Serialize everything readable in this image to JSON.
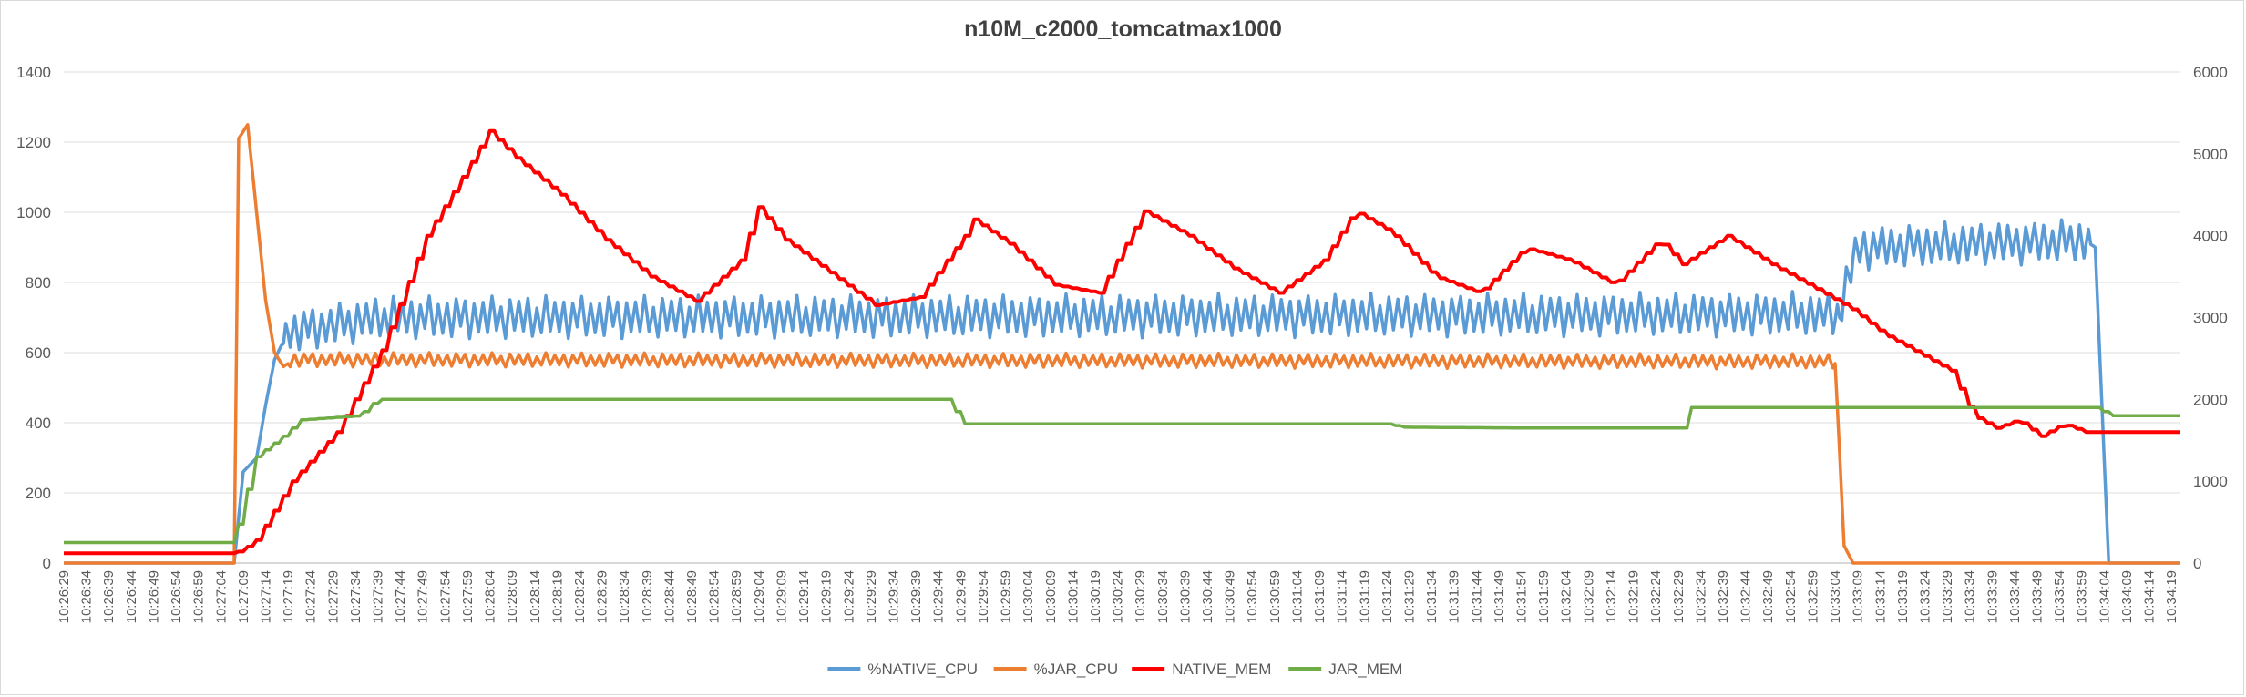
{
  "chart_data": {
    "type": "line",
    "title": "n10M_c2000_tomcatmax1000",
    "x_start": "10:26:29",
    "x_end": "10:34:21",
    "x_label_step_seconds": 5,
    "y_left": {
      "range": [
        0,
        1400
      ],
      "ticks": [
        0,
        200,
        400,
        600,
        800,
        1000,
        1200,
        1400
      ]
    },
    "y_right": {
      "range": [
        0,
        6000
      ],
      "ticks": [
        0,
        1000,
        2000,
        3000,
        4000,
        5000,
        6000
      ]
    },
    "grid": true,
    "legend_position": "bottom",
    "series": [
      {
        "name": "%NATIVE_CPU",
        "color": "#5b9bd5",
        "axis": "left",
        "style": "oscillating",
        "points": [
          [
            "10:26:29",
            0
          ],
          [
            "10:27:07",
            0
          ],
          [
            "10:27:09",
            260
          ],
          [
            "10:27:12",
            300
          ],
          [
            "10:27:14",
            450
          ],
          [
            "10:27:16",
            580
          ],
          [
            "10:27:19",
            660
          ],
          [
            "10:27:40",
            700
          ],
          [
            "10:33:05",
            710
          ],
          [
            "10:33:08",
            870
          ],
          [
            "10:33:10",
            900
          ],
          [
            "10:34:00",
            920
          ],
          [
            "10:34:02",
            900
          ],
          [
            "10:34:05",
            0
          ],
          [
            "10:34:21",
            0
          ]
        ],
        "oscillation": {
          "from": "10:27:18",
          "to": "10:34:01",
          "period_seconds": 2,
          "amplitude": 45
        }
      },
      {
        "name": "%JAR_CPU",
        "color": "#ed7d31",
        "axis": "left",
        "style": "oscillating",
        "points": [
          [
            "10:26:29",
            0
          ],
          [
            "10:27:07",
            0
          ],
          [
            "10:27:08",
            1210
          ],
          [
            "10:27:10",
            1250
          ],
          [
            "10:27:12",
            1000
          ],
          [
            "10:27:14",
            750
          ],
          [
            "10:27:16",
            600
          ],
          [
            "10:27:18",
            560
          ],
          [
            "10:27:20",
            580
          ],
          [
            "10:33:04",
            575
          ],
          [
            "10:33:06",
            50
          ],
          [
            "10:33:08",
            0
          ],
          [
            "10:34:21",
            0
          ]
        ],
        "oscillation": {
          "from": "10:27:19",
          "to": "10:33:04",
          "period_seconds": 2,
          "amplitude": 15
        }
      },
      {
        "name": "NATIVE_MEM",
        "color": "#ff0000",
        "axis": "right",
        "style": "stepped",
        "points": [
          [
            "10:26:29",
            120
          ],
          [
            "10:27:07",
            120
          ],
          [
            "10:27:09",
            160
          ],
          [
            "10:27:12",
            280
          ],
          [
            "10:27:15",
            550
          ],
          [
            "10:27:20",
            1000
          ],
          [
            "10:27:30",
            1600
          ],
          [
            "10:27:40",
            2600
          ],
          [
            "10:27:50",
            4000
          ],
          [
            "10:28:00",
            4900
          ],
          [
            "10:28:04",
            5280
          ],
          [
            "10:28:10",
            4950
          ],
          [
            "10:28:20",
            4500
          ],
          [
            "10:28:30",
            3950
          ],
          [
            "10:28:40",
            3500
          ],
          [
            "10:28:50",
            3200
          ],
          [
            "10:29:00",
            3700
          ],
          [
            "10:29:04",
            4350
          ],
          [
            "10:29:10",
            3950
          ],
          [
            "10:29:20",
            3550
          ],
          [
            "10:29:30",
            3150
          ],
          [
            "10:29:40",
            3250
          ],
          [
            "10:29:50",
            4000
          ],
          [
            "10:29:52",
            4200
          ],
          [
            "10:30:00",
            3900
          ],
          [
            "10:30:10",
            3400
          ],
          [
            "10:30:20",
            3300
          ],
          [
            "10:30:30",
            4300
          ],
          [
            "10:30:40",
            4000
          ],
          [
            "10:30:50",
            3600
          ],
          [
            "10:31:00",
            3300
          ],
          [
            "10:31:10",
            3700
          ],
          [
            "10:31:17",
            4300
          ],
          [
            "10:31:25",
            4050
          ],
          [
            "10:31:35",
            3500
          ],
          [
            "10:31:45",
            3300
          ],
          [
            "10:31:55",
            3850
          ],
          [
            "10:32:05",
            3700
          ],
          [
            "10:32:15",
            3400
          ],
          [
            "10:32:25",
            3950
          ],
          [
            "10:32:30",
            3650
          ],
          [
            "10:32:40",
            4000
          ],
          [
            "10:32:50",
            3650
          ],
          [
            "10:33:00",
            3350
          ],
          [
            "10:33:08",
            3100
          ],
          [
            "10:33:15",
            2800
          ],
          [
            "10:33:25",
            2500
          ],
          [
            "10:33:30",
            2350
          ],
          [
            "10:33:35",
            1800
          ],
          [
            "10:33:40",
            1650
          ],
          [
            "10:33:45",
            1750
          ],
          [
            "10:33:50",
            1550
          ],
          [
            "10:33:55",
            1700
          ],
          [
            "10:34:00",
            1600
          ],
          [
            "10:34:21",
            1600
          ]
        ]
      },
      {
        "name": "JAR_MEM",
        "color": "#70ad47",
        "axis": "right",
        "style": "stepped",
        "points": [
          [
            "10:26:29",
            250
          ],
          [
            "10:27:07",
            250
          ],
          [
            "10:27:09",
            700
          ],
          [
            "10:27:12",
            1300
          ],
          [
            "10:27:18",
            1550
          ],
          [
            "10:27:22",
            1750
          ],
          [
            "10:27:35",
            1800
          ],
          [
            "10:27:39",
            2000
          ],
          [
            "10:29:47",
            2000
          ],
          [
            "10:29:49",
            1700
          ],
          [
            "10:31:25",
            1700
          ],
          [
            "10:31:27",
            1660
          ],
          [
            "10:31:55",
            1650
          ],
          [
            "10:32:30",
            1650
          ],
          [
            "10:32:32",
            1900
          ],
          [
            "10:34:03",
            1900
          ],
          [
            "10:34:05",
            1800
          ],
          [
            "10:34:21",
            1800
          ]
        ]
      }
    ]
  }
}
